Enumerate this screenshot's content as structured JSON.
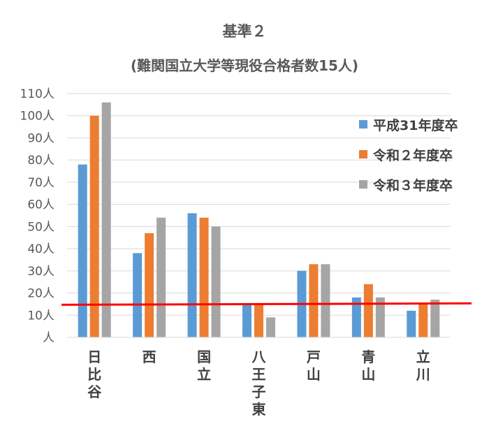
{
  "chart_data": {
    "type": "bar",
    "title": "基準２",
    "subtitle": "(難関国立大学等現役合格者数15人)",
    "categories": [
      "日比谷",
      "西",
      "国立",
      "八王子東",
      "戸山",
      "青山",
      "立川"
    ],
    "series": [
      {
        "name": "平成31年度卒",
        "color": "#5B9BD5",
        "values": [
          78,
          38,
          56,
          15,
          30,
          18,
          12
        ]
      },
      {
        "name": "令和２年度卒",
        "color": "#ED7D31",
        "values": [
          100,
          47,
          54,
          15,
          33,
          24,
          15
        ]
      },
      {
        "name": "令和３年度卒",
        "color": "#A5A5A5",
        "values": [
          106,
          54,
          50,
          9,
          33,
          18,
          17
        ]
      }
    ],
    "y_ticks": [
      "人",
      "10人",
      "20人",
      "30人",
      "40人",
      "50人",
      "60人",
      "70人",
      "80人",
      "90人",
      "100人",
      "110人"
    ],
    "ylim": [
      0,
      110
    ],
    "grid": true,
    "legend_position": "right",
    "reference_line": {
      "value": 15,
      "color": "#FF0000"
    }
  }
}
